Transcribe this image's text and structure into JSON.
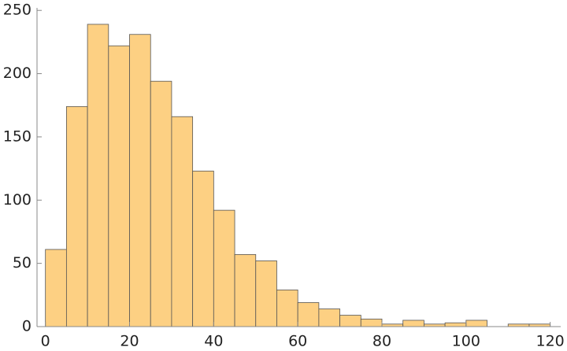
{
  "chart_data": {
    "type": "histogram",
    "bins": [
      0,
      5,
      10,
      15,
      20,
      25,
      30,
      35,
      40,
      45,
      50,
      55,
      60,
      65,
      70,
      75,
      80,
      85,
      90,
      95,
      100,
      105,
      110,
      115,
      120
    ],
    "values": [
      61,
      174,
      239,
      222,
      231,
      194,
      166,
      123,
      92,
      57,
      52,
      29,
      19,
      14,
      9,
      6,
      2,
      5,
      2,
      3,
      5,
      0,
      2,
      2
    ],
    "color": "#fdd083",
    "xlim": [
      -2,
      122.5
    ],
    "ylim": [
      0,
      252
    ],
    "xticks": [
      0,
      20,
      40,
      60,
      80,
      100,
      120
    ],
    "yticks": [
      0,
      50,
      100,
      150,
      200,
      250
    ]
  }
}
